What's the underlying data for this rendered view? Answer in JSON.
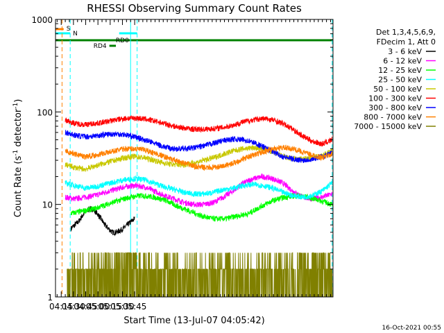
{
  "chart_data": {
    "type": "line",
    "title": "RHESSI Observing Summary Count Rates",
    "xlabel": "Start Time (13-Jul-07 04:05:42)",
    "ylabel_parts": [
      "Count Rate (s",
      "-1",
      " detector",
      "-1",
      ")"
    ],
    "ylabel": "Count Rate (s-1 detector-1)",
    "yscale": "log",
    "ylim": [
      1,
      1000
    ],
    "xlim_min": [
      248,
      588
    ],
    "y_ticks": [
      1,
      10,
      100,
      1000
    ],
    "y_tick_labels": [
      "1",
      "10",
      "100",
      "1000"
    ],
    "x_ticks_min": [
      255,
      270,
      285,
      300,
      315,
      330,
      345
    ],
    "x_tick_labels": [
      "04:15",
      "04:30",
      "04:45",
      "05:00",
      "05:15",
      "05:30",
      "05:45"
    ],
    "legend_header": [
      "Det 1,3,4,5,6,9,",
      "FDecim 1, Att 0"
    ],
    "annotations": {
      "S": {
        "label": "S",
        "start_min": 248,
        "end_min": 258,
        "color": "#ff8000"
      },
      "N": {
        "label": "N",
        "intervals": [
          [
            248,
            266
          ],
          [
            326,
            348
          ]
        ],
        "color": "#00ffff"
      },
      "RD0": {
        "label": "RD0",
        "start_min": 248,
        "end_min": 588,
        "color": "#008000"
      },
      "RD4": {
        "label": "RD4",
        "start_min": 314,
        "end_min": 322,
        "color": "#008000"
      },
      "night_lines_min": [
        266,
        340,
        348,
        587
      ],
      "saa_line_min": 256
    },
    "series": [
      {
        "name": "3 - 6 keV",
        "color": "#000000",
        "start": 267,
        "end": 345,
        "values": [
          5.5,
          6.0,
          6.5,
          7.5,
          8.5,
          9.0,
          8.8,
          8.0,
          7.0,
          6.0,
          5.5,
          5.0,
          5.0,
          5.2,
          5.5,
          6.0,
          6.5,
          7.0
        ]
      },
      {
        "name": "6 - 12 keV",
        "color": "#ff00ff",
        "start": 260,
        "end": 587,
        "values": [
          12,
          11.5,
          12,
          12.5,
          13.5,
          14.5,
          15.5,
          16,
          15.5,
          14,
          12.5,
          11.5,
          10.5,
          10,
          10,
          10.5,
          12,
          14,
          17,
          19,
          20,
          19,
          17,
          14,
          12,
          11.5,
          12,
          13
        ]
      },
      {
        "name": "12 - 25 keV",
        "color": "#00ff00",
        "start": 267,
        "end": 587,
        "values": [
          8,
          8.5,
          9,
          10,
          11,
          12,
          12.5,
          12,
          11,
          9.5,
          8.5,
          7.5,
          7,
          7,
          7.5,
          8,
          9.5,
          11,
          12,
          12.5,
          12,
          11,
          10
        ]
      },
      {
        "name": "25 - 50 keV",
        "color": "#00ffff",
        "start": 260,
        "end": 587,
        "values": [
          17,
          16,
          15,
          15.5,
          16.5,
          17.5,
          18.5,
          19,
          18.5,
          17,
          15.5,
          14.5,
          13.5,
          13,
          13,
          13.5,
          14.5,
          15,
          16,
          16.5,
          16,
          15,
          13.5,
          12.5,
          12,
          12.5,
          14,
          17
        ]
      },
      {
        "name": "50 - 100 keV",
        "color": "#c8c800",
        "start": 260,
        "end": 587,
        "values": [
          27,
          25,
          24,
          26,
          28,
          30,
          32,
          33,
          32,
          30,
          28,
          27,
          27,
          28,
          30,
          32,
          35,
          38,
          40,
          41,
          40,
          37,
          33,
          31,
          31,
          32,
          34,
          38
        ]
      },
      {
        "name": "100 - 300 keV",
        "color": "#ff0000",
        "start": 260,
        "end": 587,
        "values": [
          82,
          75,
          73,
          75,
          78,
          82,
          85,
          86,
          84,
          80,
          75,
          70,
          67,
          65,
          65,
          66,
          68,
          72,
          78,
          82,
          85,
          82,
          75,
          65,
          55,
          48,
          45,
          50
        ]
      },
      {
        "name": "300 - 800 keV",
        "color": "#0000ff",
        "start": 260,
        "end": 587,
        "values": [
          60,
          56,
          54,
          55,
          57,
          58,
          57,
          54,
          50,
          46,
          42,
          40,
          40,
          41,
          43,
          46,
          49,
          51,
          50,
          47,
          42,
          37,
          33,
          31,
          30,
          31,
          33,
          36
        ]
      },
      {
        "name": "800 - 7000 keV",
        "color": "#ff8000",
        "start": 260,
        "end": 587,
        "values": [
          38,
          35,
          33,
          34,
          36,
          38,
          40,
          40,
          39,
          36,
          33,
          30,
          28,
          26,
          25,
          25,
          26,
          28,
          31,
          34,
          37,
          40,
          41,
          40,
          37,
          34,
          32,
          35
        ]
      },
      {
        "name": "7000 - 15000 keV",
        "color": "#808000",
        "start": 262,
        "end": 587,
        "values": [
          2,
          1.5,
          2,
          1.5,
          2,
          2,
          1.5,
          2,
          2,
          1.5,
          2,
          1.5,
          1,
          1,
          2,
          2,
          3,
          3,
          2.5,
          3,
          2,
          2,
          2,
          2,
          2,
          2
        ]
      }
    ]
  },
  "footer": {
    "timestamp": "16-Oct-2021 00:55"
  }
}
